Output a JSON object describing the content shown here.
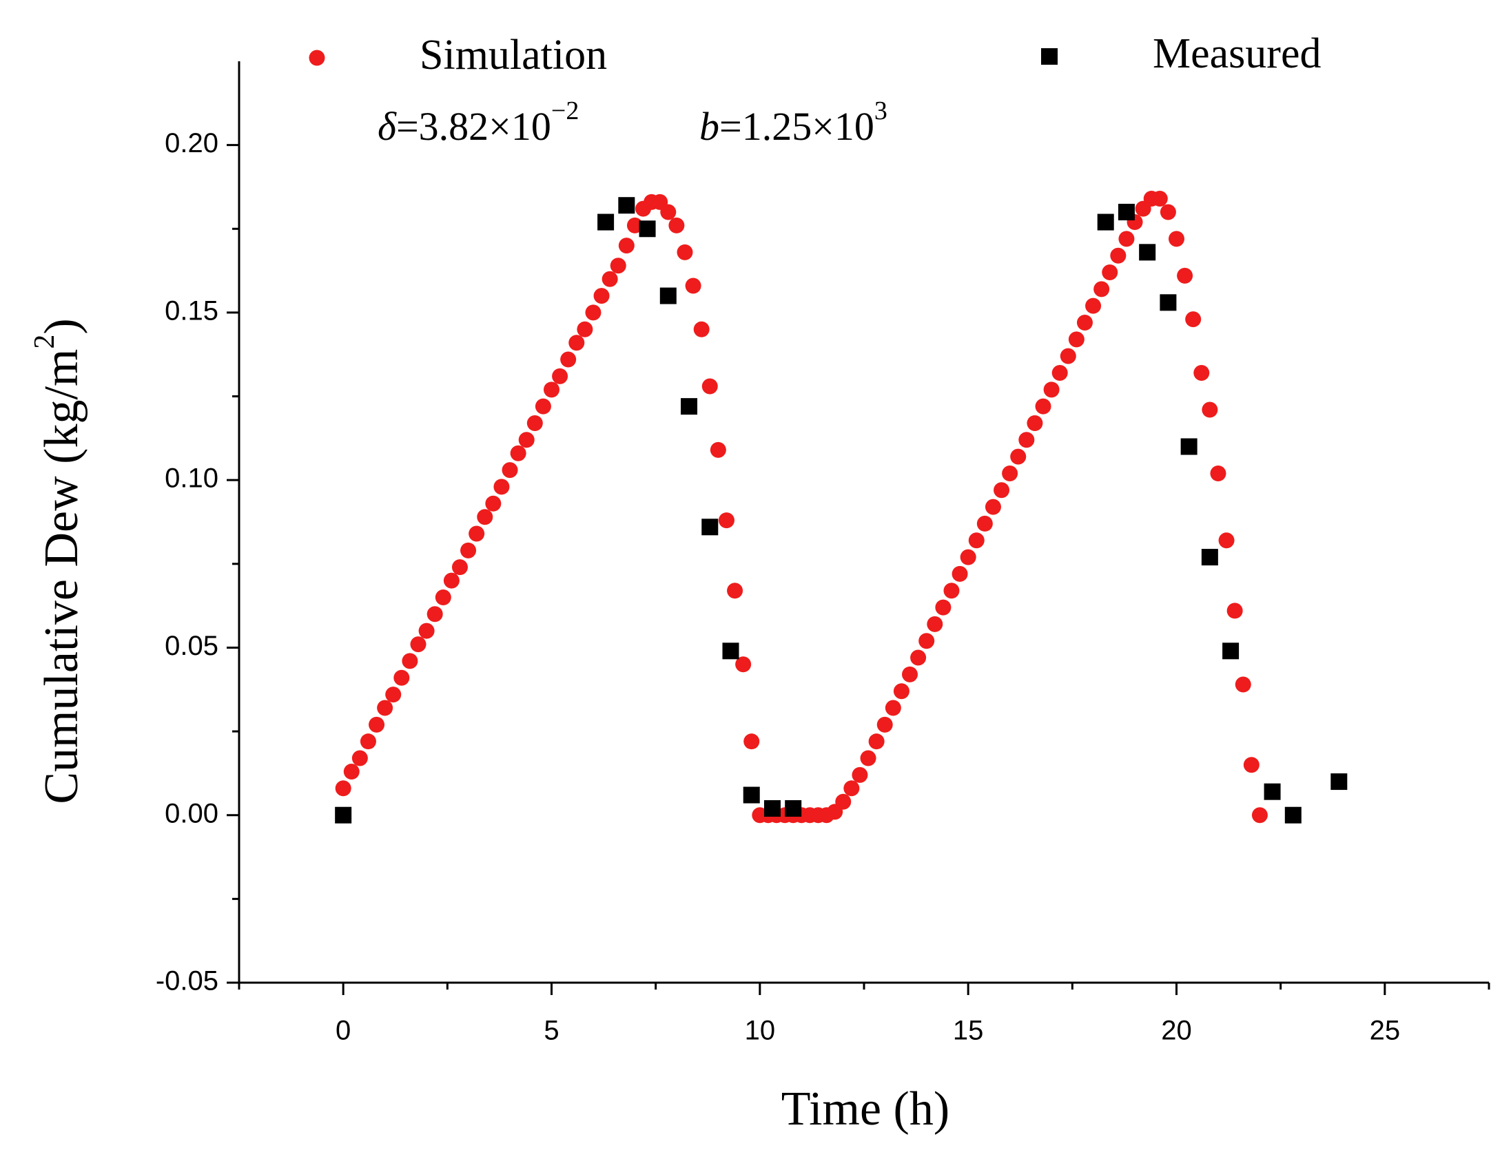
{
  "chart_data": {
    "type": "scatter",
    "xlabel": "Time (h)",
    "ylabel": {
      "text": "Cumulative Dew (kg/m",
      "exponent": "2",
      "close": ")"
    },
    "annotations": [
      {
        "symbol": "δ",
        "text": "=3.82×10",
        "exponent": "−2"
      },
      {
        "symbol": "b",
        "text": "=1.25×10",
        "exponent": "3"
      }
    ],
    "xlim": [
      -2.5,
      27.5
    ],
    "ylim": [
      -0.05,
      0.225
    ],
    "xticks": [
      0,
      5,
      10,
      15,
      20,
      25
    ],
    "xticks_minor": [
      -2.5,
      2.5,
      7.5,
      12.5,
      17.5,
      22.5,
      27.5
    ],
    "yticks": [
      -0.05,
      {
        "value": 0,
        "label": "0.00"
      },
      0.05,
      {
        "value": 0.1,
        "label": "0.10"
      },
      0.15,
      {
        "value": 0.2,
        "label": "0.20"
      }
    ],
    "yticks_minor": [
      -0.025,
      0.025,
      0.075,
      0.125,
      0.175
    ],
    "series": [
      {
        "name": "Simulation",
        "color": "#ee1c1c",
        "marker": "circle",
        "x": [
          0,
          0.2,
          0.4,
          0.6,
          0.8,
          1.0,
          1.2,
          1.4,
          1.6,
          1.8,
          2.0,
          2.2,
          2.4,
          2.6,
          2.8,
          3.0,
          3.2,
          3.4,
          3.6,
          3.8,
          4.0,
          4.2,
          4.4,
          4.6,
          4.8,
          5.0,
          5.2,
          5.4,
          5.6,
          5.8,
          6.0,
          6.2,
          6.4,
          6.6,
          6.8,
          7.0,
          7.2,
          7.4,
          7.6,
          7.8,
          8.0,
          8.2,
          8.4,
          8.6,
          8.8,
          9.0,
          9.2,
          9.4,
          9.6,
          9.8,
          10.0,
          10.2,
          10.4,
          10.6,
          10.8,
          11.0,
          11.2,
          11.4,
          11.6,
          11.8,
          12.0,
          12.2,
          12.4,
          12.6,
          12.8,
          13.0,
          13.2,
          13.4,
          13.6,
          13.8,
          14.0,
          14.2,
          14.4,
          14.6,
          14.8,
          15.0,
          15.2,
          15.4,
          15.6,
          15.8,
          16.0,
          16.2,
          16.4,
          16.6,
          16.8,
          17.0,
          17.2,
          17.4,
          17.6,
          17.8,
          18.0,
          18.2,
          18.4,
          18.6,
          18.8,
          19.0,
          19.2,
          19.4,
          19.6,
          19.8,
          20.0,
          20.2,
          20.4,
          20.6,
          20.8,
          21.0,
          21.2,
          21.4,
          21.6,
          21.8,
          22.0
        ],
        "values": [
          0.008,
          0.013,
          0.017,
          0.022,
          0.027,
          0.032,
          0.036,
          0.041,
          0.046,
          0.051,
          0.055,
          0.06,
          0.065,
          0.07,
          0.074,
          0.079,
          0.084,
          0.089,
          0.093,
          0.098,
          0.103,
          0.108,
          0.112,
          0.117,
          0.122,
          0.127,
          0.131,
          0.136,
          0.141,
          0.145,
          0.15,
          0.155,
          0.16,
          0.164,
          0.17,
          0.176,
          0.181,
          0.183,
          0.183,
          0.18,
          0.176,
          0.168,
          0.158,
          0.145,
          0.128,
          0.109,
          0.088,
          0.067,
          0.045,
          0.022,
          0,
          0,
          0,
          0,
          0,
          0,
          0,
          0,
          0,
          0.001,
          0.004,
          0.008,
          0.012,
          0.017,
          0.022,
          0.027,
          0.032,
          0.037,
          0.042,
          0.047,
          0.052,
          0.057,
          0.062,
          0.067,
          0.072,
          0.077,
          0.082,
          0.087,
          0.092,
          0.097,
          0.102,
          0.107,
          0.112,
          0.117,
          0.122,
          0.127,
          0.132,
          0.137,
          0.142,
          0.147,
          0.152,
          0.157,
          0.162,
          0.167,
          0.172,
          0.177,
          0.181,
          0.184,
          0.184,
          0.18,
          0.172,
          0.161,
          0.148,
          0.132,
          0.121,
          0.102,
          0.082,
          0.061,
          0.039,
          0.015,
          0
        ]
      },
      {
        "name": "Measured",
        "color": "#000000",
        "marker": "square",
        "x": [
          0,
          6.3,
          6.8,
          7.3,
          7.8,
          8.3,
          8.8,
          9.3,
          9.8,
          10.3,
          10.8,
          18.3,
          18.8,
          19.3,
          19.8,
          20.3,
          20.8,
          21.3,
          22.3,
          22.8,
          23.9
        ],
        "values": [
          0,
          0.177,
          0.182,
          0.175,
          0.155,
          0.122,
          0.086,
          0.049,
          0.006,
          0.002,
          0.002,
          0.177,
          0.18,
          0.168,
          0.153,
          0.11,
          0.077,
          0.049,
          0.007,
          0,
          0.01
        ]
      }
    ]
  }
}
